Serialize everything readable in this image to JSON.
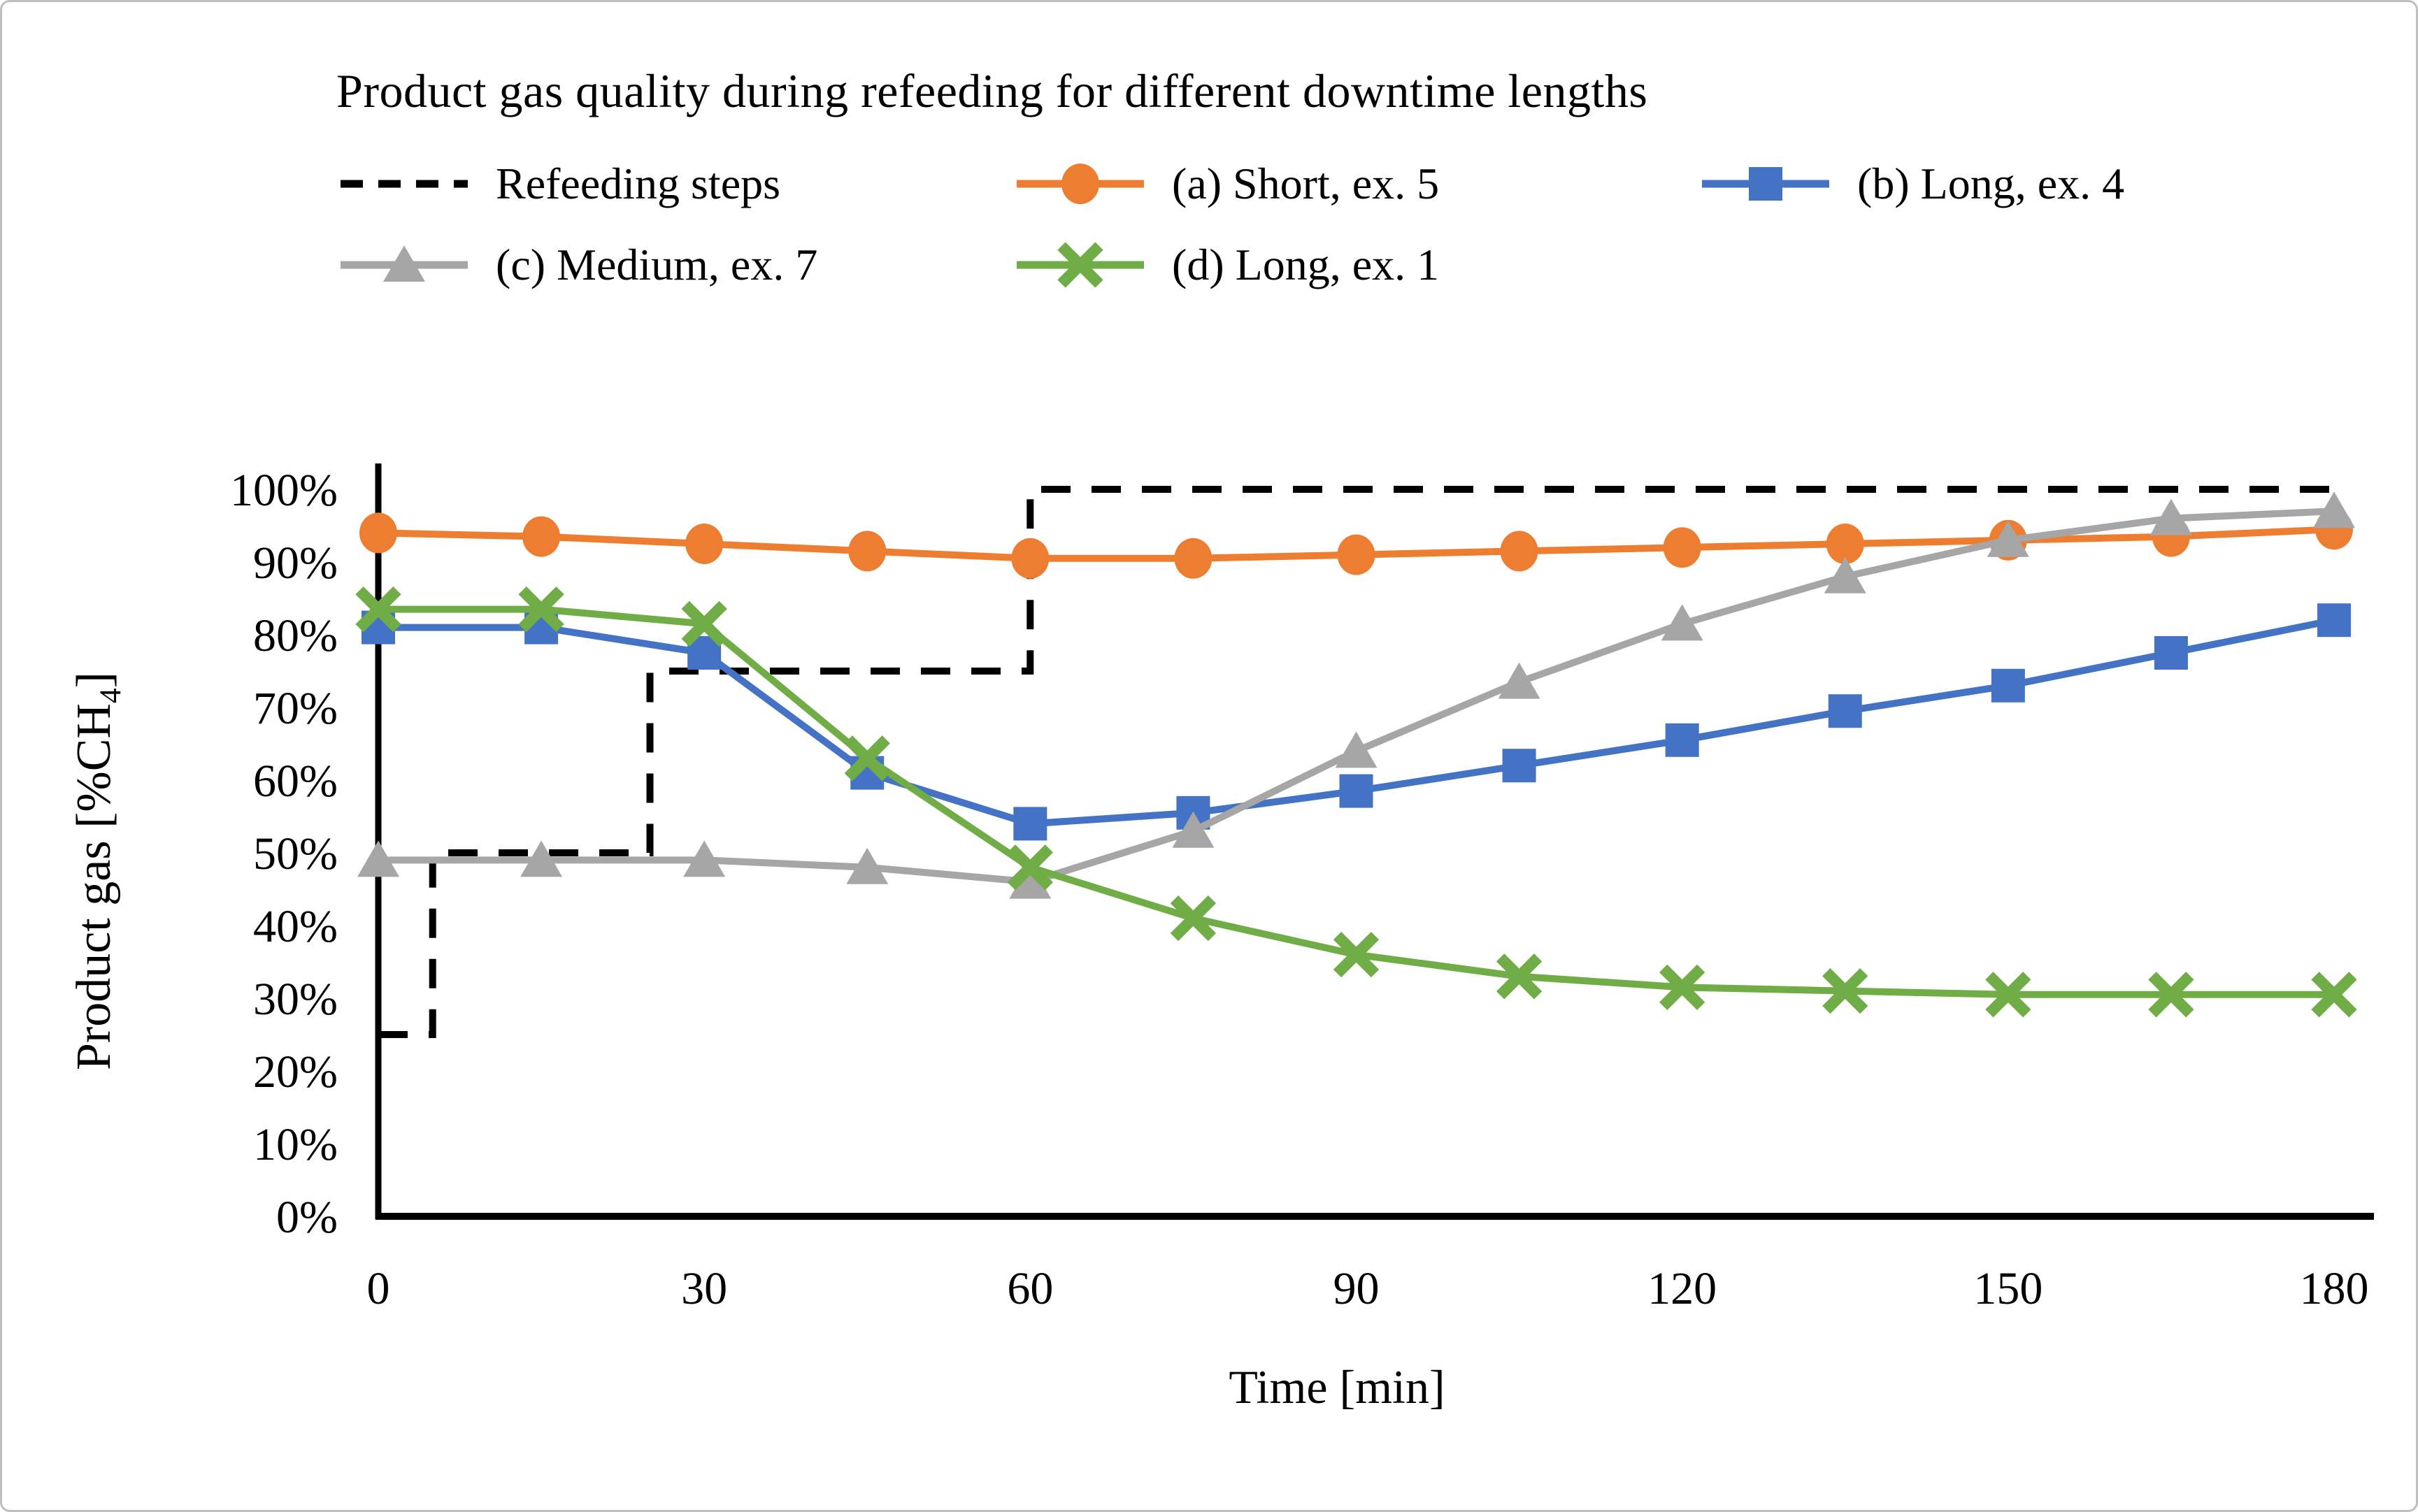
{
  "figure": {
    "ylabel_prefix": "Product gas [%CH",
    "ylabel_sub": "4",
    "ylabel_suffix": "]"
  },
  "chart_data": {
    "type": "line",
    "title": "Product gas quality during refeeding for different downtime lengths",
    "xlabel": "Time [min]",
    "ylabel": "Product gas [%CH4]",
    "xlim": [
      0,
      180
    ],
    "ylim": [
      0,
      100
    ],
    "grid": false,
    "legend_position": "top",
    "x_tick_values": [
      0,
      30,
      60,
      90,
      120,
      150,
      180
    ],
    "y_tick_values": [
      0,
      10,
      20,
      30,
      40,
      50,
      60,
      70,
      80,
      90,
      100
    ],
    "y_tick_suffix": "%",
    "x": [
      0,
      15,
      30,
      45,
      60,
      75,
      90,
      105,
      120,
      135,
      150,
      165,
      180
    ],
    "series": [
      {
        "name": "Refeeding steps",
        "color": "#000000",
        "marker": "none",
        "dashed": true,
        "step_points": [
          [
            0,
            25
          ],
          [
            5,
            25
          ],
          [
            5,
            50
          ],
          [
            25,
            50
          ],
          [
            25,
            75
          ],
          [
            60,
            75
          ],
          [
            60,
            100
          ],
          [
            180,
            100
          ]
        ]
      },
      {
        "name": "(a) Short, ex. 5",
        "color": "#ED7D31",
        "marker": "circle",
        "dashed": false,
        "values": [
          94,
          93.5,
          92.5,
          91.5,
          90.5,
          90.5,
          91,
          91.5,
          92,
          92.5,
          93,
          93.5,
          94.5
        ]
      },
      {
        "name": "(b) Long, ex. 4",
        "color": "#4472C4",
        "marker": "square",
        "dashed": false,
        "values": [
          81,
          81,
          77.5,
          61,
          54,
          55.5,
          58.5,
          62,
          65.5,
          69.5,
          73,
          77.5,
          82
        ]
      },
      {
        "name": "(c) Medium, ex. 7",
        "color": "#A6A6A6",
        "marker": "triangle",
        "dashed": false,
        "values": [
          49,
          49,
          49,
          48,
          46,
          53,
          64,
          73.5,
          81.5,
          88,
          93,
          96,
          97
        ]
      },
      {
        "name": "(d) Long, ex. 1",
        "color": "#70AD47",
        "marker": "x",
        "dashed": false,
        "values": [
          83.5,
          83.5,
          81.5,
          63,
          48,
          41,
          36,
          33,
          31.5,
          31,
          30.5,
          30.5,
          30.5
        ]
      }
    ]
  }
}
